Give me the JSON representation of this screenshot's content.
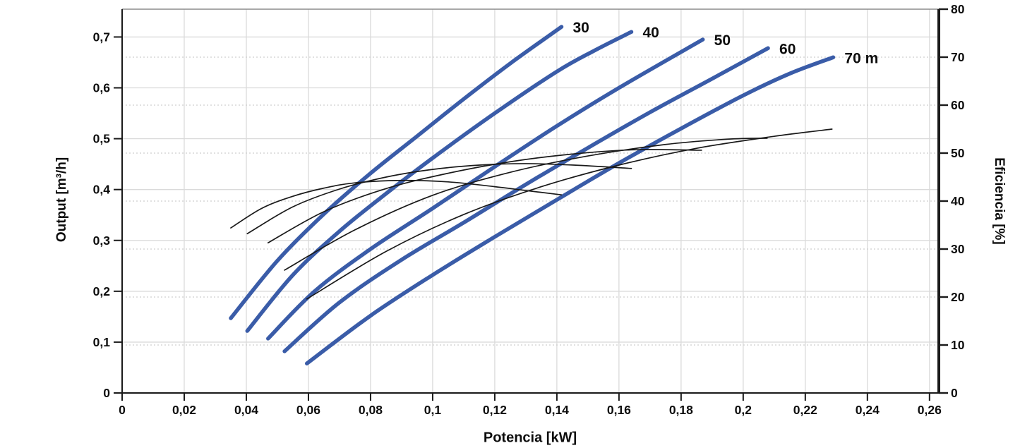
{
  "chart_data": {
    "type": "line",
    "title": "",
    "xlabel": "Potencia [kW]",
    "ylabel_left": "Output [m³/h]",
    "ylabel_right": "Eficiencia [%]",
    "grid": {
      "vertical": "solid",
      "horizontal_left_axis": "solid",
      "horizontal_right_axis": "dotted"
    },
    "colors": {
      "head_curve": "#3A5CA8",
      "efficiency_curve": "#1a1a1a",
      "grid_solid": "#DADADA",
      "grid_dotted": "#CFCFCF",
      "spine": "#1a1a1a",
      "top_border": "#8C8C8C",
      "text": "#0d0d0d"
    },
    "x_axis": {
      "min": 0,
      "max": 0.263,
      "tick_values": [
        0,
        0.02,
        0.04,
        0.06,
        0.08,
        0.1,
        0.12,
        0.14,
        0.16,
        0.18,
        0.2,
        0.22,
        0.24,
        0.26
      ],
      "tick_labels": [
        "0",
        "0,02",
        "0,04",
        "0,06",
        "0,08",
        "0,1",
        "0,12",
        "0,14",
        "0,16",
        "0,18",
        "0,2",
        "0,22",
        "0,24",
        "0,26"
      ]
    },
    "y_left": {
      "min": 0,
      "max": 0.7547,
      "tick_values": [
        0,
        0.1,
        0.2,
        0.3,
        0.4,
        0.5,
        0.6,
        0.7
      ],
      "tick_labels": [
        "0",
        "0,1",
        "0,2",
        "0,3",
        "0,4",
        "0,5",
        "0,6",
        "0,7"
      ]
    },
    "y_right": {
      "min": 0,
      "max": 80,
      "tick_values": [
        0,
        10,
        20,
        30,
        40,
        50,
        60,
        70,
        80
      ],
      "tick_labels": [
        "0",
        "10",
        "20",
        "30",
        "40",
        "50",
        "60",
        "70",
        "80"
      ]
    },
    "series": [
      {
        "name": "head-30m",
        "kind": "head",
        "axis": "left",
        "label": "30",
        "points": [
          [
            0.035,
            0.147
          ],
          [
            0.05,
            0.26
          ],
          [
            0.065,
            0.352
          ],
          [
            0.08,
            0.432
          ],
          [
            0.095,
            0.505
          ],
          [
            0.11,
            0.578
          ],
          [
            0.125,
            0.648
          ],
          [
            0.1415,
            0.72
          ]
        ]
      },
      {
        "name": "head-40m",
        "kind": "head",
        "axis": "left",
        "label": "40",
        "points": [
          [
            0.0403,
            0.122
          ],
          [
            0.055,
            0.232
          ],
          [
            0.07,
            0.318
          ],
          [
            0.085,
            0.392
          ],
          [
            0.1,
            0.462
          ],
          [
            0.12,
            0.55
          ],
          [
            0.14,
            0.632
          ],
          [
            0.152,
            0.673
          ],
          [
            0.164,
            0.71
          ]
        ]
      },
      {
        "name": "head-50m",
        "kind": "head",
        "axis": "left",
        "label": "50",
        "points": [
          [
            0.047,
            0.107
          ],
          [
            0.062,
            0.2
          ],
          [
            0.08,
            0.283
          ],
          [
            0.1,
            0.363
          ],
          [
            0.12,
            0.445
          ],
          [
            0.14,
            0.525
          ],
          [
            0.16,
            0.6
          ],
          [
            0.187,
            0.695
          ]
        ]
      },
      {
        "name": "head-60m",
        "kind": "head",
        "axis": "left",
        "label": "60",
        "points": [
          [
            0.0523,
            0.082
          ],
          [
            0.07,
            0.178
          ],
          [
            0.09,
            0.262
          ],
          [
            0.11,
            0.335
          ],
          [
            0.13,
            0.41
          ],
          [
            0.15,
            0.482
          ],
          [
            0.17,
            0.552
          ],
          [
            0.19,
            0.618
          ],
          [
            0.208,
            0.678
          ]
        ]
      },
      {
        "name": "head-70m",
        "kind": "head",
        "axis": "left",
        "label": "70 m",
        "points": [
          [
            0.0595,
            0.058
          ],
          [
            0.08,
            0.152
          ],
          [
            0.1,
            0.232
          ],
          [
            0.12,
            0.307
          ],
          [
            0.14,
            0.38
          ],
          [
            0.16,
            0.452
          ],
          [
            0.18,
            0.52
          ],
          [
            0.2,
            0.585
          ],
          [
            0.215,
            0.628
          ],
          [
            0.229,
            0.66
          ]
        ]
      },
      {
        "name": "efficiency-30m",
        "kind": "efficiency",
        "axis": "right",
        "label": "",
        "points": [
          [
            0.035,
            34.4
          ],
          [
            0.045,
            38.5
          ],
          [
            0.055,
            41.0
          ],
          [
            0.065,
            42.7
          ],
          [
            0.075,
            43.8
          ],
          [
            0.09,
            44.3
          ],
          [
            0.105,
            44.0
          ],
          [
            0.12,
            43.0
          ],
          [
            0.13,
            42.2
          ],
          [
            0.1415,
            41.3
          ]
        ]
      },
      {
        "name": "efficiency-40m",
        "kind": "efficiency",
        "axis": "right",
        "label": "",
        "points": [
          [
            0.0403,
            33.2
          ],
          [
            0.055,
            38.8
          ],
          [
            0.07,
            42.5
          ],
          [
            0.085,
            45.0
          ],
          [
            0.1,
            46.6
          ],
          [
            0.115,
            47.5
          ],
          [
            0.13,
            47.8
          ],
          [
            0.1455,
            47.5
          ],
          [
            0.164,
            46.8
          ]
        ]
      },
      {
        "name": "efficiency-50m",
        "kind": "efficiency",
        "axis": "right",
        "label": "",
        "points": [
          [
            0.047,
            31.3
          ],
          [
            0.065,
            37.8
          ],
          [
            0.085,
            42.6
          ],
          [
            0.105,
            45.8
          ],
          [
            0.125,
            48.2
          ],
          [
            0.145,
            49.8
          ],
          [
            0.165,
            50.7
          ],
          [
            0.1866,
            50.6
          ]
        ]
      },
      {
        "name": "efficiency-60m",
        "kind": "efficiency",
        "axis": "right",
        "label": "",
        "points": [
          [
            0.0523,
            25.6
          ],
          [
            0.075,
            34.0
          ],
          [
            0.1,
            41.2
          ],
          [
            0.125,
            46.0
          ],
          [
            0.15,
            49.4
          ],
          [
            0.175,
            51.8
          ],
          [
            0.195,
            52.9
          ],
          [
            0.2077,
            53.1
          ]
        ]
      },
      {
        "name": "efficiency-70m",
        "kind": "efficiency",
        "axis": "right",
        "label": "",
        "points": [
          [
            0.0595,
            19.6
          ],
          [
            0.085,
            29.5
          ],
          [
            0.11,
            37.2
          ],
          [
            0.135,
            43.0
          ],
          [
            0.16,
            47.5
          ],
          [
            0.185,
            51.0
          ],
          [
            0.21,
            53.5
          ],
          [
            0.2286,
            55.0
          ]
        ]
      }
    ],
    "style": {
      "head_curve_width": 5.5,
      "efficiency_curve_width": 1.7,
      "curve_label_font_size": 21,
      "tick_font_size": 17.5
    }
  }
}
